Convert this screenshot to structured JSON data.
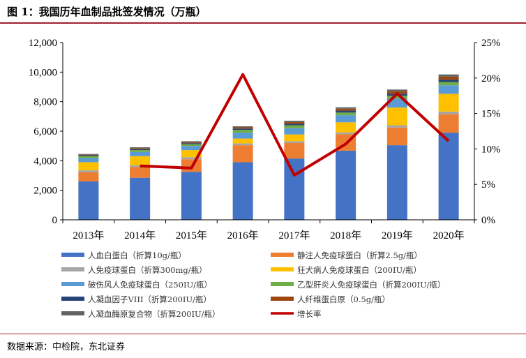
{
  "figure": {
    "title": "图 1：我国历年血制品批签发情况（万瓶）",
    "source": "数据来源：中检院，东北证券"
  },
  "chart_data": {
    "type": "bar",
    "stacked": true,
    "title": "我国历年血制品批签发情况（万瓶）",
    "categories": [
      "2013年",
      "2014年",
      "2015年",
      "2016年",
      "2017年",
      "2018年",
      "2019年",
      "2020年"
    ],
    "y_left": {
      "min": 0,
      "max": 12000,
      "ticks": [
        "0",
        "2,000",
        "4,000",
        "6,000",
        "8,000",
        "10,000",
        "12,000"
      ],
      "tick_values": [
        0,
        2000,
        4000,
        6000,
        8000,
        10000,
        12000
      ]
    },
    "y_right": {
      "min": 0,
      "max": 25,
      "ticks": [
        "0%",
        "5%",
        "10%",
        "15%",
        "20%",
        "25%"
      ],
      "tick_values": [
        0,
        5,
        10,
        15,
        20,
        25
      ]
    },
    "series": [
      {
        "name": "人血白蛋白（折算10g/瓶）",
        "color": "#4472c4",
        "values": [
          2600,
          2850,
          3250,
          3900,
          4150,
          4680,
          5050,
          5900
        ]
      },
      {
        "name": "静注人免疫球蛋白（折算2.5g/瓶）",
        "color": "#ed7d31",
        "values": [
          620,
          720,
          850,
          1150,
          1050,
          1120,
          1200,
          1250
        ]
      },
      {
        "name": "人免疫球蛋白（折算300mg/瓶）",
        "color": "#a5a5a5",
        "values": [
          130,
          120,
          140,
          120,
          120,
          120,
          150,
          180
        ]
      },
      {
        "name": "狂犬病人免疫球蛋白（200IU/瓶）",
        "color": "#ffc000",
        "values": [
          550,
          620,
          480,
          330,
          460,
          680,
          1200,
          1200
        ]
      },
      {
        "name": "破伤风人免疫球蛋白（250IU/瓶）",
        "color": "#5b9bd5",
        "values": [
          280,
          280,
          280,
          400,
          420,
          480,
          600,
          580
        ]
      },
      {
        "name": "乙型肝炎人免疫球蛋白（折算200IU/瓶）",
        "color": "#70ad47",
        "values": [
          130,
          130,
          120,
          190,
          200,
          180,
          200,
          220
        ]
      },
      {
        "name": "人凝血因子VIII（折算200IU/瓶）",
        "color": "#264478",
        "values": [
          60,
          70,
          70,
          90,
          110,
          130,
          140,
          160
        ]
      },
      {
        "name": "人纤维蛋白原（0.5g/瓶）",
        "color": "#9e480e",
        "values": [
          40,
          60,
          70,
          80,
          110,
          130,
          160,
          200
        ]
      },
      {
        "name": "人凝血酶原复合物（折算200IU/瓶）",
        "color": "#636363",
        "values": [
          50,
          60,
          60,
          70,
          90,
          100,
          120,
          150
        ]
      }
    ],
    "line": {
      "name": "增长率",
      "color": "#c00000",
      "axis": "right",
      "values": [
        null,
        7.6,
        7.3,
        20.5,
        6.3,
        10.7,
        17.8,
        11.1
      ]
    },
    "legend_position": "bottom"
  }
}
